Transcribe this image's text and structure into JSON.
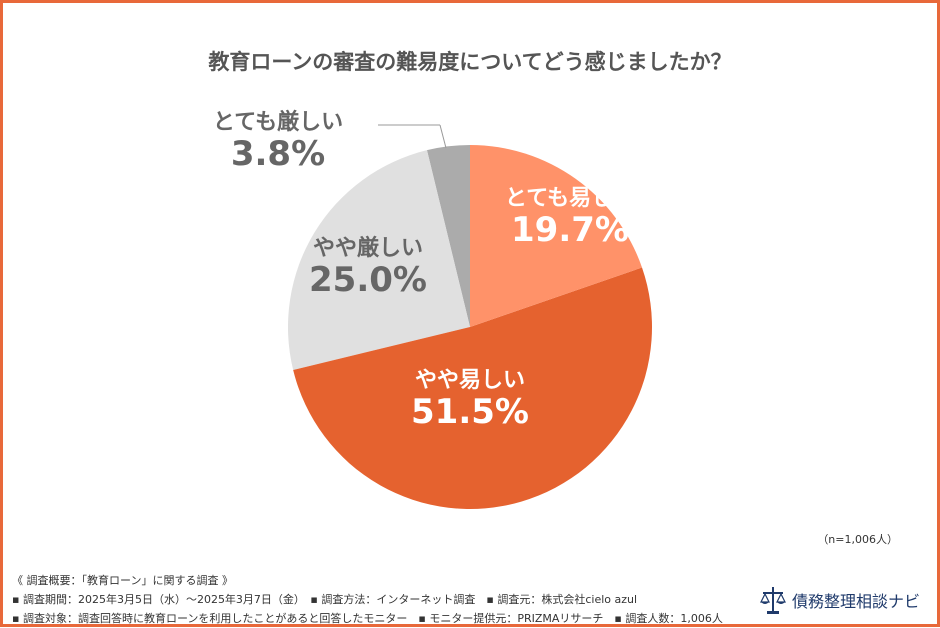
{
  "title": "教育ローンの審査の難易度についてどう感じましたか？",
  "chart_data": {
    "type": "pie",
    "title": "教育ローンの審査の難易度についてどう感じましたか？",
    "slices": [
      {
        "label": "とても易しい",
        "value": 19.7,
        "display": "19.7%",
        "color": "#FF9269"
      },
      {
        "label": "やや易しい",
        "value": 51.5,
        "display": "51.5%",
        "color": "#E5622F"
      },
      {
        "label": "やや厳しい",
        "value": 25.0,
        "display": "25.0%",
        "color": "#E0E0E0"
      },
      {
        "label": "とても厳しい",
        "value": 3.8,
        "display": "3.8%",
        "color": "#ABABAB"
      }
    ],
    "start": "12 o'clock",
    "direction": "clockwise"
  },
  "sample_note": "（n=1,006人）",
  "footer": {
    "line1": "《 調査概要：「教育ローン」に関する調査 》",
    "line2": "▪ 調査期間：2025年3月5日（水）～2025年3月7日（金）　▪ 調査方法：インターネット調査　▪ 調査元：株式会社cielo azul",
    "line3": "▪ 調査対象：調査回答時に教育ローンを利用したことがあると回答したモニター　▪ モニター提供元：PRIZMAリサーチ　▪ 調査人数：1,006人"
  },
  "logo": {
    "text": "債務整理相談ナビ",
    "icon": "scales-of-justice-icon"
  }
}
